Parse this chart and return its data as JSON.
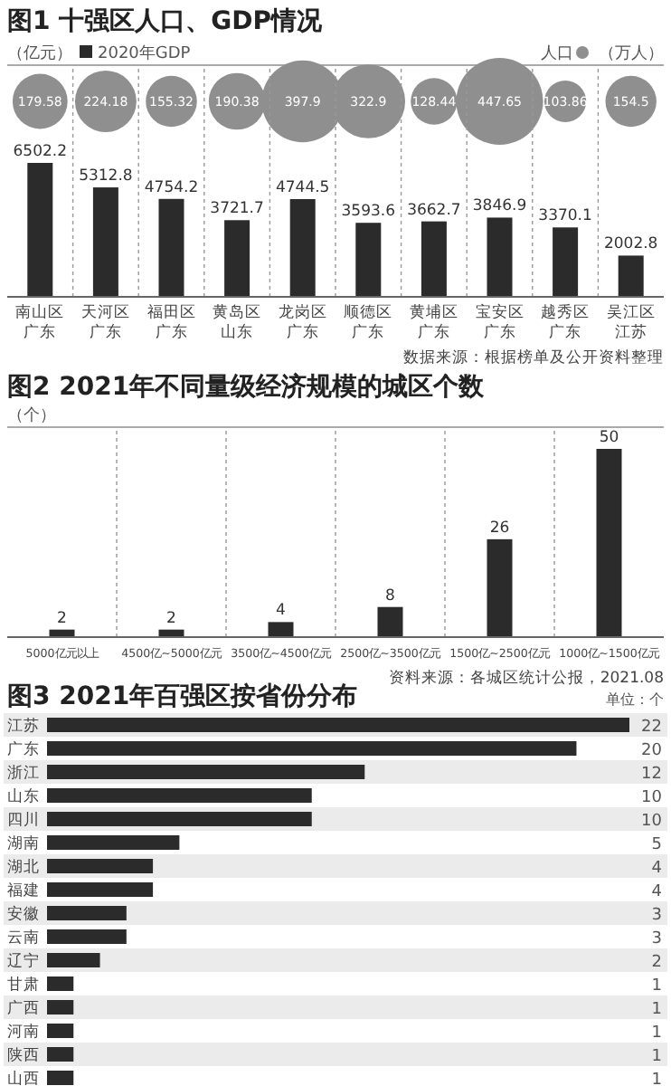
{
  "chart_data": [
    {
      "type": "other",
      "title": "图1 十强区人口、GDP情况",
      "ylabel": "（万人）",
      "categories": [
        null,
        null,
        null,
        null,
        null,
        null,
        null,
        null,
        null,
        null
      ],
      "series": [
        {
          "name": "人口",
          "color": "#8f8f8f",
          "values": [
            179.58,
            224.18,
            155.32,
            190.38,
            397.9,
            322.9,
            128.44,
            447.65,
            103.86,
            154.5
          ]
        }
      ],
      "data_labels": true,
      "legend": "top right"
    },
    {
      "type": "bar",
      "ylabel": "（亿元）",
      "categories": [
        "南山区广东",
        "天河区广东",
        "福田区广东",
        "黄岛区山东",
        "龙岗区广东",
        "顺德区广东",
        "黄埔区广东",
        "宝安区广东",
        "越秀区广东",
        "吴江区江苏"
      ],
      "series": [
        {
          "name": "2020年GDP",
          "color": "#2b2b2b",
          "values": [
            6502.2,
            5312.8,
            4754.2,
            3721.7,
            4744.5,
            3593.6,
            3662.7,
            3846.9,
            3370.1,
            2002.8
          ]
        }
      ],
      "data_labels": true,
      "legend": "top left",
      "grid": "x",
      "annotations": [
        "数据来源：根据榜单及公开资料整理"
      ]
    },
    {
      "type": "bar",
      "title": "图2 2021年不同量级经济规模的城区个数",
      "ylabel": "（个）",
      "categories": [
        "5000亿元以上",
        "4500亿~5000亿元",
        "3500亿~4500亿元",
        "2500亿~3500亿元",
        "1500亿~2500亿元",
        "1000亿~1500亿元"
      ],
      "values": [
        2,
        2,
        4,
        8,
        26,
        50
      ],
      "color": "#2b2b2b",
      "data_labels": true,
      "grid": "x",
      "annotations": [
        "资料来源：各城区统计公报，2021.08"
      ]
    },
    {
      "type": "bar",
      "orientation": "horizontal",
      "title": "图3 2021年百强区按省份分布",
      "categories": [
        "江苏",
        "广东",
        "浙江",
        "山东",
        "四川",
        "湖南",
        "湖北",
        "福建",
        "安徽",
        "云南",
        "辽宁",
        "甘肃",
        "广西",
        "河南",
        "陕西",
        "山西"
      ],
      "values": [
        22,
        20,
        12,
        10,
        10,
        5,
        4,
        4,
        3,
        3,
        2,
        1,
        1,
        1,
        1,
        1
      ],
      "color": "#2b2b2b",
      "data_labels": true,
      "annotations": [
        "单位：个"
      ]
    }
  ]
}
